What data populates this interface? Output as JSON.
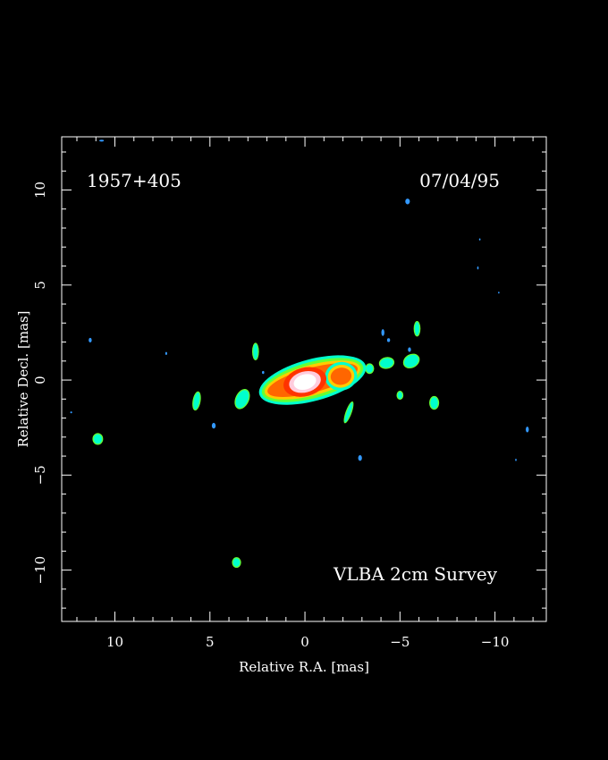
{
  "chart_data": {
    "type": "heatmap",
    "title": "",
    "source_name": "1957+405",
    "date": "07/04/95",
    "survey": "VLBA 2cm Survey",
    "xlabel": "Relative R.A. [mas]",
    "ylabel": "Relative Decl. [mas]",
    "xlim": [
      12.8,
      -12.7
    ],
    "ylim": [
      -12.7,
      12.8
    ],
    "x_reversed": true,
    "grid": false,
    "background": "#000000",
    "x_ticks": [
      {
        "value": 10,
        "label": "10"
      },
      {
        "value": 5,
        "label": "5"
      },
      {
        "value": 0,
        "label": "0"
      },
      {
        "value": -5,
        "label": "−5"
      },
      {
        "value": -10,
        "label": "−10"
      }
    ],
    "y_ticks": [
      {
        "value": 10,
        "label": "10"
      },
      {
        "value": 5,
        "label": "5"
      },
      {
        "value": 0,
        "label": "0"
      },
      {
        "value": -5,
        "label": "−5"
      },
      {
        "value": -10,
        "label": "−10"
      }
    ],
    "colors": {
      "frame": "#ffffff",
      "level_cyan": "#00ffcc",
      "level_green": "#66ff33",
      "level_yellow": "#ffcc00",
      "level_orange": "#ff6600",
      "level_red": "#ff3300",
      "level_pink": "#ffccdd",
      "level_white": "#ffffff",
      "noise_blue": "#3399ff"
    },
    "core": {
      "x": 0,
      "y": -0.1,
      "peak": "white"
    },
    "main_emission": {
      "x": -0.4,
      "y": 0.0,
      "rx": 2.9,
      "ry": 1.1,
      "angle_deg": -15
    },
    "features": [
      {
        "x": -3.4,
        "y": 0.6,
        "rx": 0.18,
        "ry": 0.22,
        "angle_deg": 0,
        "level": "cyan"
      },
      {
        "x": -4.3,
        "y": 0.9,
        "rx": 0.35,
        "ry": 0.25,
        "angle_deg": -10,
        "level": "cyan"
      },
      {
        "x": -5.6,
        "y": 1.0,
        "rx": 0.4,
        "ry": 0.3,
        "angle_deg": -30,
        "level": "cyan"
      },
      {
        "x": -5.9,
        "y": 2.7,
        "rx": 0.12,
        "ry": 0.35,
        "angle_deg": 0,
        "level": "cyan"
      },
      {
        "x": -4.1,
        "y": 2.5,
        "rx": 0.08,
        "ry": 0.18,
        "angle_deg": 0,
        "level": "noise"
      },
      {
        "x": -4.4,
        "y": 2.1,
        "rx": 0.08,
        "ry": 0.1,
        "angle_deg": 0,
        "level": "noise"
      },
      {
        "x": -5.5,
        "y": 1.6,
        "rx": 0.08,
        "ry": 0.12,
        "angle_deg": 0,
        "level": "noise"
      },
      {
        "x": -5.0,
        "y": -0.8,
        "rx": 0.12,
        "ry": 0.18,
        "angle_deg": 0,
        "level": "cyan"
      },
      {
        "x": -6.8,
        "y": -1.2,
        "rx": 0.2,
        "ry": 0.3,
        "angle_deg": 0,
        "level": "cyan"
      },
      {
        "x": -2.3,
        "y": -1.7,
        "rx": 0.1,
        "ry": 0.55,
        "angle_deg": 20,
        "level": "cyan"
      },
      {
        "x": -2.9,
        "y": -4.1,
        "rx": 0.1,
        "ry": 0.15,
        "angle_deg": 0,
        "level": "noise"
      },
      {
        "x": 2.6,
        "y": 1.5,
        "rx": 0.12,
        "ry": 0.4,
        "angle_deg": 0,
        "level": "cyan"
      },
      {
        "x": 2.2,
        "y": 0.4,
        "rx": 0.06,
        "ry": 0.08,
        "angle_deg": 0,
        "level": "noise"
      },
      {
        "x": 3.3,
        "y": -1.0,
        "rx": 0.3,
        "ry": 0.5,
        "angle_deg": 25,
        "level": "cyan"
      },
      {
        "x": 5.7,
        "y": -1.1,
        "rx": 0.15,
        "ry": 0.45,
        "angle_deg": 10,
        "level": "cyan"
      },
      {
        "x": 4.8,
        "y": -2.4,
        "rx": 0.1,
        "ry": 0.15,
        "angle_deg": 0,
        "level": "noise"
      },
      {
        "x": 10.9,
        "y": -3.1,
        "rx": 0.22,
        "ry": 0.25,
        "angle_deg": 0,
        "level": "cyan"
      },
      {
        "x": 11.3,
        "y": 2.1,
        "rx": 0.08,
        "ry": 0.12,
        "angle_deg": 0,
        "level": "noise"
      },
      {
        "x": 7.3,
        "y": 1.4,
        "rx": 0.05,
        "ry": 0.08,
        "angle_deg": 0,
        "level": "noise"
      },
      {
        "x": 12.3,
        "y": -1.7,
        "rx": 0.05,
        "ry": 0.05,
        "angle_deg": 0,
        "level": "noise"
      },
      {
        "x": 3.6,
        "y": -9.6,
        "rx": 0.18,
        "ry": 0.22,
        "angle_deg": 0,
        "level": "cyan"
      },
      {
        "x": 10.7,
        "y": 12.6,
        "rx": 0.12,
        "ry": 0.05,
        "angle_deg": 0,
        "level": "noise"
      },
      {
        "x": -5.4,
        "y": 9.4,
        "rx": 0.12,
        "ry": 0.15,
        "angle_deg": 0,
        "level": "noise"
      },
      {
        "x": -9.2,
        "y": 7.4,
        "rx": 0.04,
        "ry": 0.06,
        "angle_deg": 0,
        "level": "noise"
      },
      {
        "x": -9.1,
        "y": 5.9,
        "rx": 0.04,
        "ry": 0.08,
        "angle_deg": 0,
        "level": "noise"
      },
      {
        "x": -10.2,
        "y": 4.6,
        "rx": 0.04,
        "ry": 0.05,
        "angle_deg": 0,
        "level": "noise"
      },
      {
        "x": -11.7,
        "y": -2.6,
        "rx": 0.08,
        "ry": 0.15,
        "angle_deg": 0,
        "level": "noise"
      },
      {
        "x": -11.1,
        "y": -4.2,
        "rx": 0.04,
        "ry": 0.06,
        "angle_deg": 0,
        "level": "noise"
      }
    ]
  }
}
